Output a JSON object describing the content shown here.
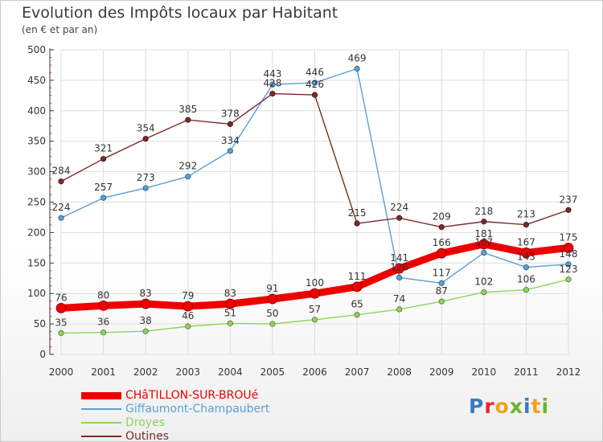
{
  "title": "Evolution des Impôts locaux par Habitant",
  "subtitle": "(en € et par an)",
  "brand": {
    "text": "Proxiti",
    "letter_colors": [
      "#3a78c8",
      "#e8262a",
      "#f1a21a",
      "#6ab32e",
      "#3a78c8",
      "#f1a21a",
      "#6ab32e"
    ]
  },
  "chart_data": {
    "type": "line",
    "title": "Evolution des Impôts locaux par Habitant",
    "subtitle": "(en € et par an)",
    "x": [
      "2000",
      "2001",
      "2002",
      "2003",
      "2004",
      "2005",
      "2006",
      "2007",
      "2008",
      "2009",
      "2010",
      "2011",
      "2012"
    ],
    "ylim": [
      0,
      500
    ],
    "yticks": [
      0,
      50,
      100,
      150,
      200,
      250,
      300,
      350,
      400,
      450,
      500
    ],
    "grid": true,
    "legend_position": "bottom-left",
    "series": [
      {
        "name": "CHâTILLON-SUR-BROUé",
        "color": "#ee0000",
        "emphasis": true,
        "values": [
          76,
          80,
          83,
          79,
          83,
          91,
          100,
          111,
          141,
          166,
          181,
          167,
          175
        ],
        "labels": [
          "76",
          "80",
          "83",
          "79",
          "83",
          "91",
          "100",
          "111",
          "141",
          "166",
          "181",
          "167",
          "175"
        ]
      },
      {
        "name": "Giffaumont-Champaubert",
        "color": "#5a9fd4",
        "emphasis": false,
        "values": [
          224,
          257,
          273,
          292,
          334,
          443,
          446,
          469,
          126,
          117,
          167,
          143,
          148
        ],
        "labels": [
          "224",
          "257",
          "273",
          "292",
          "334",
          "443",
          "446",
          "469",
          "126",
          "117",
          "167",
          "143",
          "148"
        ]
      },
      {
        "name": "Droyes",
        "color": "#8ed45a",
        "emphasis": false,
        "values": [
          35,
          36,
          38,
          46,
          51,
          50,
          57,
          65,
          74,
          87,
          102,
          106,
          123
        ],
        "labels": [
          "35",
          "36",
          "38",
          "46",
          "51",
          "50",
          "57",
          "65",
          "74",
          "87",
          "102",
          "106",
          "123"
        ]
      },
      {
        "name": "Outines",
        "color": "#7a2a2a",
        "emphasis": false,
        "values": [
          284,
          321,
          354,
          385,
          378,
          428,
          426,
          215,
          224,
          209,
          218,
          213,
          237
        ],
        "labels": [
          "284",
          "321",
          "354",
          "385",
          "378",
          "428",
          "426",
          "215",
          "224",
          "209",
          "218",
          "213",
          "237"
        ]
      }
    ]
  }
}
